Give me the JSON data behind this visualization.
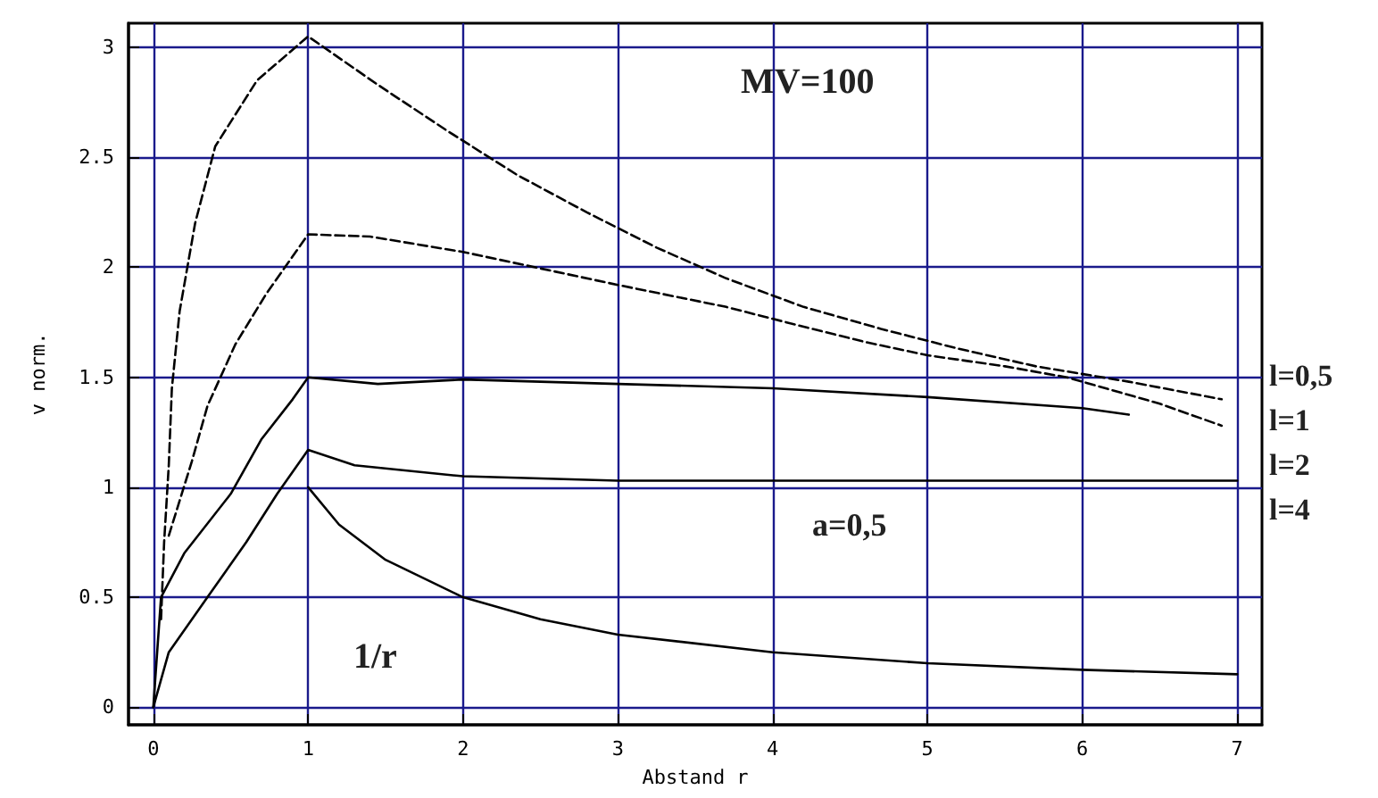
{
  "chart_data": {
    "type": "line",
    "xlabel": "Abstand r",
    "ylabel": "v norm.",
    "xlim": [
      -0.16,
      7.16
    ],
    "ylim": [
      -0.08,
      3.11
    ],
    "xticks": [
      0,
      1,
      2,
      3,
      4,
      5,
      6,
      7
    ],
    "yticks": [
      0,
      0.5,
      1,
      1.5,
      2,
      2.5,
      3
    ],
    "grid": true,
    "marker": "none",
    "annotations": [
      "MV=100",
      "a=0,5",
      "1/r",
      "l=0,5",
      "l=1",
      "l=2",
      "l=4"
    ],
    "series": [
      {
        "color": "#000000",
        "line_style": "dashed",
        "x": [
          0.05,
          0.07,
          0.1,
          0.12,
          0.17,
          0.27,
          0.4,
          0.67,
          1,
          1.45,
          1.9,
          2.35,
          2.8,
          3.25,
          3.7,
          4.2,
          4.7,
          5.2,
          5.7,
          6.3,
          6.9
        ],
        "values": [
          0.4,
          0.75,
          1.1,
          1.45,
          1.8,
          2.2,
          2.55,
          2.85,
          3.05,
          2.83,
          2.62,
          2.42,
          2.25,
          2.09,
          1.95,
          1.82,
          1.72,
          1.63,
          1.55,
          1.48,
          1.4
        ]
      },
      {
        "color": "#000000",
        "line_style": "dashed",
        "x": [
          0.1,
          0.25,
          0.35,
          0.53,
          0.73,
          1,
          1.4,
          2,
          3,
          3.7,
          4.2,
          4.6,
          5,
          5.5,
          5.9,
          6.5,
          6.9
        ],
        "values": [
          0.78,
          1.12,
          1.37,
          1.65,
          1.88,
          2.15,
          2.14,
          2.07,
          1.92,
          1.82,
          1.73,
          1.66,
          1.6,
          1.55,
          1.5,
          1.38,
          1.28
        ]
      },
      {
        "color": "#000000",
        "line_style": "solid",
        "x": [
          0,
          0.05,
          0.2,
          0.5,
          0.7,
          0.9,
          1,
          1.45,
          2,
          3,
          4,
          5,
          6,
          6.3
        ],
        "values": [
          0,
          0.5,
          0.7,
          0.97,
          1.22,
          1.4,
          1.5,
          1.47,
          1.49,
          1.47,
          1.45,
          1.41,
          1.36,
          1.33
        ]
      },
      {
        "color": "#000000",
        "line_style": "solid",
        "x": [
          0,
          0.1,
          0.35,
          0.6,
          0.8,
          1,
          1.3,
          2,
          3,
          4,
          5,
          6,
          7
        ],
        "values": [
          0,
          0.25,
          0.5,
          0.75,
          0.97,
          1.17,
          1.1,
          1.05,
          1.03,
          1.03,
          1.03,
          1.03,
          1.03
        ]
      },
      {
        "color": "#000000",
        "line_style": "solid",
        "x": [
          1,
          1.2,
          1.5,
          2,
          2.5,
          3,
          4,
          5,
          6,
          7
        ],
        "values": [
          1,
          0.83,
          0.67,
          0.5,
          0.4,
          0.33,
          0.25,
          0.2,
          0.17,
          0.15
        ]
      }
    ]
  }
}
